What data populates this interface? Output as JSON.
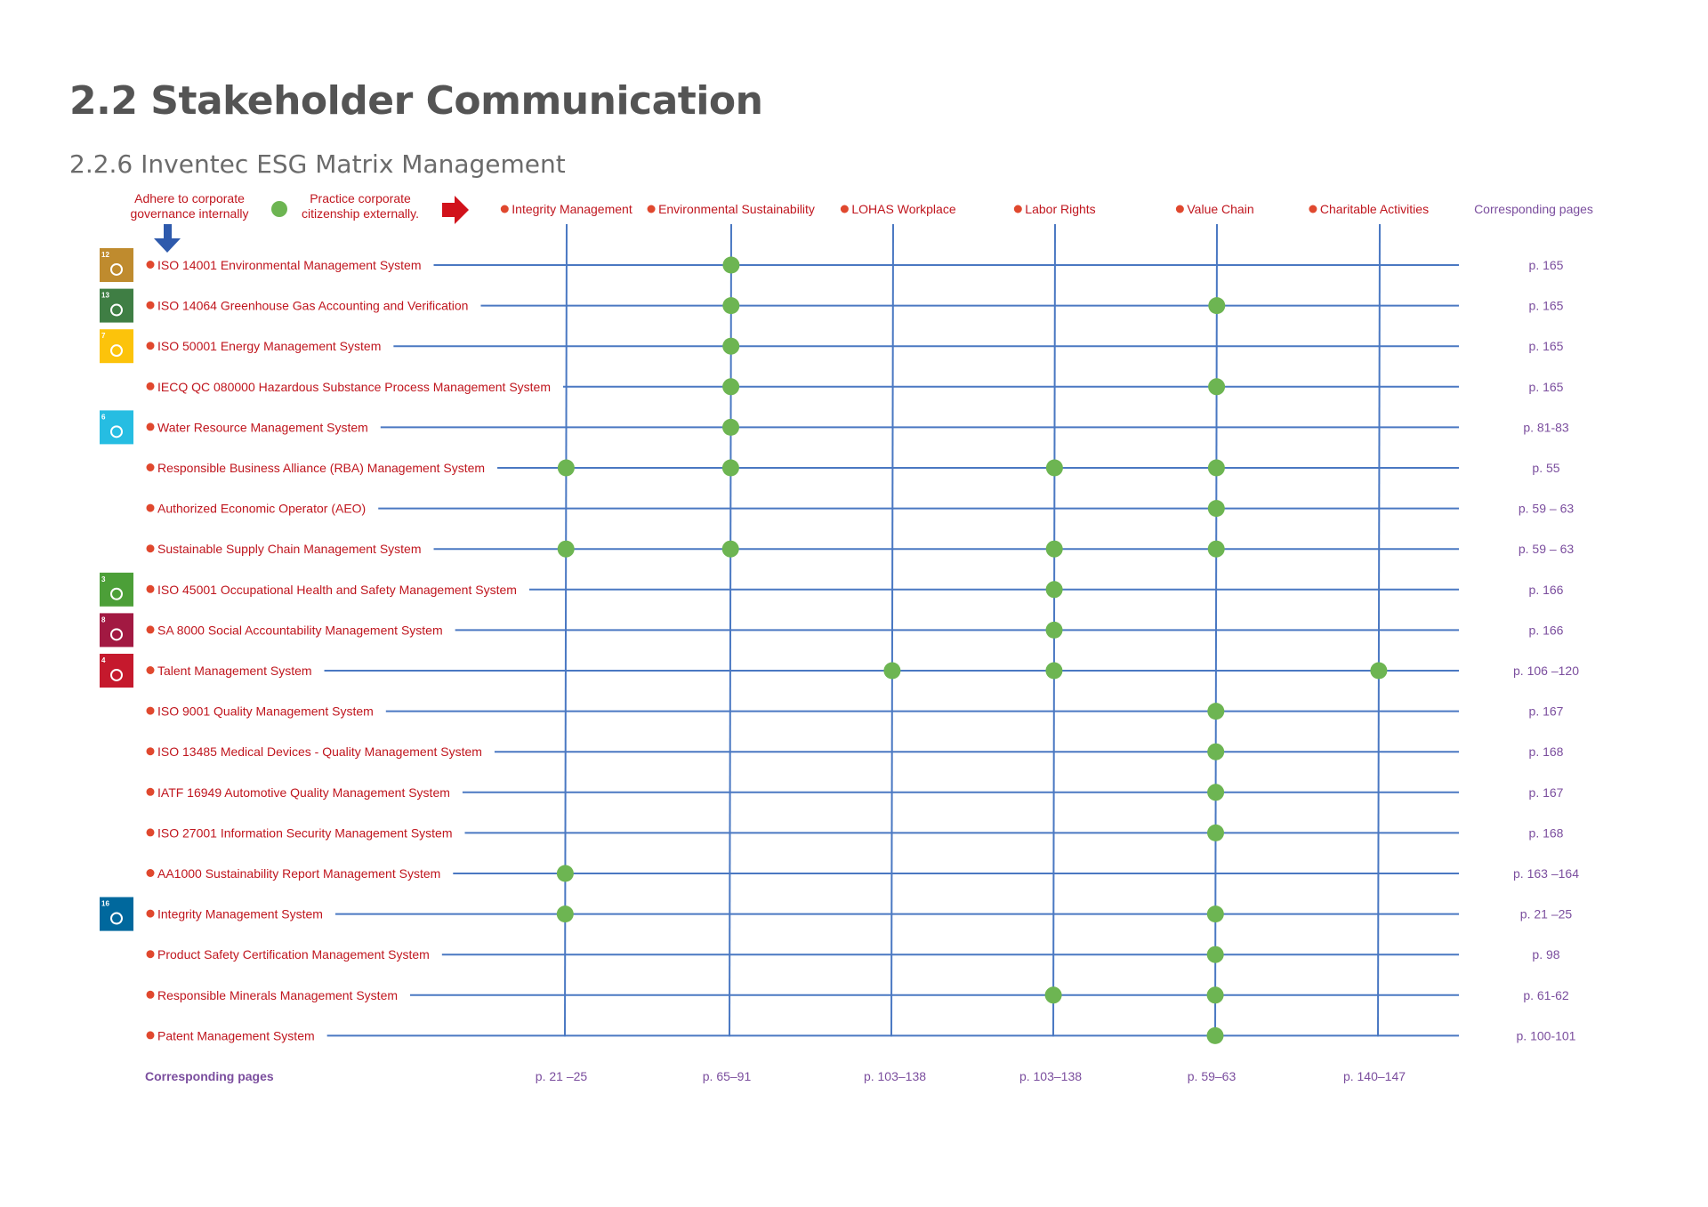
{
  "page": {
    "title": "2.2 Stakeholder Communication",
    "subtitle": "2.2.6 Inventec ESG Matrix Management"
  },
  "legend": {
    "internal_line1": "Adhere to corporate",
    "internal_line2": "governance internally",
    "external_line1": "Practice corporate",
    "external_line2": "citizenship externally."
  },
  "columns": [
    {
      "label": "Integrity Management",
      "pages": "p. 21 –25"
    },
    {
      "label": "Environmental Sustainability",
      "pages": "p. 65–91"
    },
    {
      "label": "LOHAS Workplace",
      "pages": "p. 103–138"
    },
    {
      "label": "Labor Rights",
      "pages": "p. 103–138"
    },
    {
      "label": "Value Chain",
      "pages": "p. 59–63"
    },
    {
      "label": "Charitable Activities",
      "pages": "p. 140–147"
    }
  ],
  "corresponding_pages_header": "Corresponding pages",
  "corresponding_pages_footer": "Corresponding pages",
  "rows": [
    {
      "label": "ISO 14001 Environmental Management System",
      "marks": [
        1
      ],
      "pages": "p. 165",
      "sdg": "12",
      "sdg_color": "#BF8B2E"
    },
    {
      "label": "ISO 14064 Greenhouse Gas Accounting and Verification",
      "marks": [
        1,
        4
      ],
      "pages": "p. 165",
      "sdg": "13",
      "sdg_color": "#3F7E44"
    },
    {
      "label": "ISO 50001 Energy Management System",
      "marks": [
        1
      ],
      "pages": "p. 165",
      "sdg": "7",
      "sdg_color": "#FCC30B"
    },
    {
      "label": "IECQ QC 080000 Hazardous Substance Process Management System",
      "marks": [
        1,
        4
      ],
      "pages": "p. 165",
      "sdg": "",
      "sdg_color": ""
    },
    {
      "label": "Water Resource Management System",
      "marks": [
        1
      ],
      "pages": "p. 81-83",
      "sdg": "6",
      "sdg_color": "#26BDE2"
    },
    {
      "label": "Responsible Business Alliance (RBA) Management System",
      "marks": [
        0,
        1,
        3,
        4
      ],
      "pages": "p. 55",
      "sdg": "",
      "sdg_color": ""
    },
    {
      "label": "Authorized Economic Operator (AEO)",
      "marks": [
        4
      ],
      "pages": "p. 59 – 63",
      "sdg": "",
      "sdg_color": ""
    },
    {
      "label": "Sustainable Supply Chain Management System",
      "marks": [
        0,
        1,
        3,
        4
      ],
      "pages": "p. 59 – 63",
      "sdg": "",
      "sdg_color": ""
    },
    {
      "label": "ISO 45001 Occupational Health and Safety Management System",
      "marks": [
        3
      ],
      "pages": "p. 166",
      "sdg": "3",
      "sdg_color": "#4C9F38"
    },
    {
      "label": "SA 8000 Social Accountability Management System",
      "marks": [
        3
      ],
      "pages": "p. 166",
      "sdg": "8",
      "sdg_color": "#A21942"
    },
    {
      "label": "Talent Management System",
      "marks": [
        2,
        3,
        5
      ],
      "pages": "p. 106 –120",
      "sdg": "4",
      "sdg_color": "#C5192D"
    },
    {
      "label": "ISO 9001 Quality Management System",
      "marks": [
        4
      ],
      "pages": "p. 167",
      "sdg": "",
      "sdg_color": ""
    },
    {
      "label": "ISO 13485 Medical Devices - Quality Management System",
      "marks": [
        4
      ],
      "pages": "p. 168",
      "sdg": "",
      "sdg_color": ""
    },
    {
      "label": "IATF 16949 Automotive Quality Management System",
      "marks": [
        4
      ],
      "pages": "p. 167",
      "sdg": "",
      "sdg_color": ""
    },
    {
      "label": "ISO 27001 Information Security Management System",
      "marks": [
        4
      ],
      "pages": "p. 168",
      "sdg": "",
      "sdg_color": ""
    },
    {
      "label": "AA1000 Sustainability Report  Management System",
      "marks": [
        0
      ],
      "pages": "p. 163 –164",
      "sdg": "",
      "sdg_color": ""
    },
    {
      "label": "Integrity Management System",
      "marks": [
        0,
        4
      ],
      "pages": "p. 21 –25",
      "sdg": "16",
      "sdg_color": "#00689D"
    },
    {
      "label": "Product Safety Certification Management System",
      "marks": [
        4
      ],
      "pages": "p. 98",
      "sdg": "",
      "sdg_color": ""
    },
    {
      "label": "Responsible Minerals Management System",
      "marks": [
        3,
        4
      ],
      "pages": "p. 61-62",
      "sdg": "",
      "sdg_color": ""
    },
    {
      "label": "Patent Management System",
      "marks": [
        4
      ],
      "pages": "p. 100-101",
      "sdg": "",
      "sdg_color": ""
    }
  ],
  "colors": {
    "label_red": "#C0161E",
    "bullet_red": "#E0482E",
    "grid_blue": "#4A78C2",
    "dot_green": "#6DB552",
    "pages_purple": "#7B4E9E",
    "arrow_red": "#D1121B",
    "arrow_blue": "#2E5AAC"
  },
  "icons": {
    "internal_arrow": "down-arrow-icon",
    "external_marker": "green-dot-icon",
    "external_arrow": "right-arrow-icon"
  }
}
